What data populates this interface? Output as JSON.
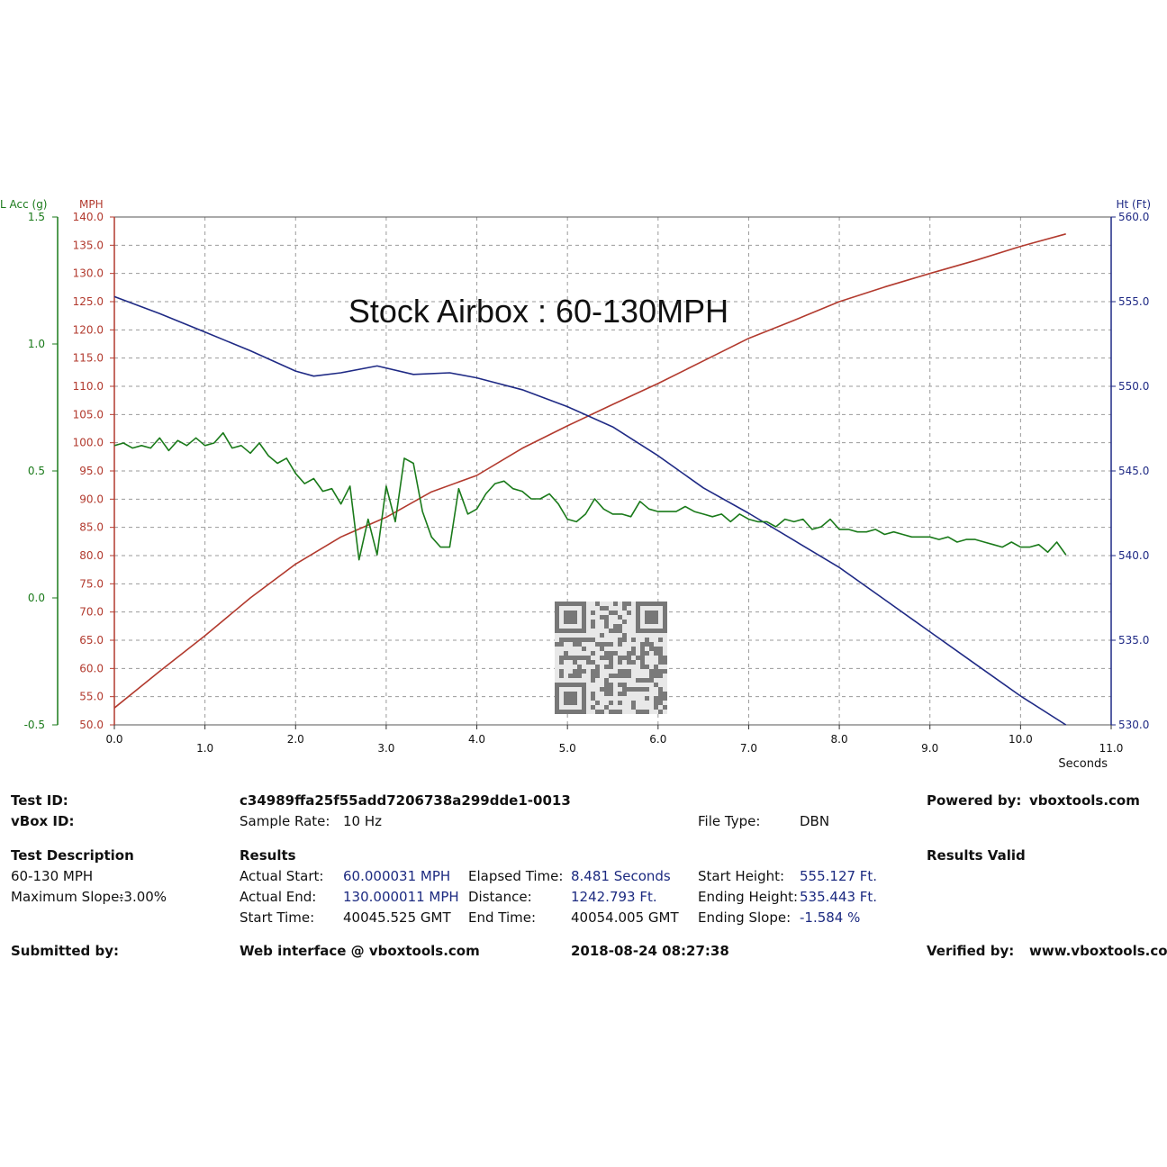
{
  "colors": {
    "speed": "#b23a2e",
    "height": "#1f2a85",
    "lat_acc": "#1a7a1a",
    "grid": "#9a9a9a"
  },
  "chart_data": {
    "type": "line",
    "title": "Stock Airbox : 60-130MPH",
    "xlabel": "Seconds",
    "xlim": [
      0,
      11
    ],
    "x_ticks": [
      "0.0",
      "1.0",
      "2.0",
      "3.0",
      "4.0",
      "5.0",
      "6.0",
      "7.0",
      "8.0",
      "9.0",
      "10.0",
      "11.0"
    ],
    "axes": {
      "lat_acc": {
        "label": "L Acc (g)",
        "range": [
          -0.5,
          1.5
        ],
        "ticks": [
          "1.5",
          "1.0",
          "0.5",
          "0.0",
          "-0.5"
        ]
      },
      "speed": {
        "label": "MPH",
        "range": [
          50,
          140
        ],
        "ticks": [
          "140.0",
          "135.0",
          "130.0",
          "125.0",
          "120.0",
          "115.0",
          "110.0",
          "105.0",
          "100.0",
          "95.0",
          "90.0",
          "85.0",
          "80.0",
          "75.0",
          "70.0",
          "65.0",
          "60.0",
          "55.0",
          "50.0"
        ]
      },
      "height": {
        "label": "Ht (Ft)",
        "range": [
          530,
          560
        ],
        "ticks": [
          "560.0",
          "555.0",
          "550.0",
          "545.0",
          "540.0",
          "535.0",
          "530.0"
        ]
      }
    },
    "grid": true,
    "series": [
      {
        "name": "MPH",
        "axis": "speed",
        "x": [
          0,
          0.5,
          1.0,
          1.5,
          2.0,
          2.5,
          3.0,
          3.5,
          4.0,
          4.5,
          5.0,
          5.5,
          6.0,
          6.5,
          7.0,
          7.5,
          8.0,
          8.5,
          9.0,
          9.5,
          10.0,
          10.5
        ],
        "values": [
          53.0,
          59.5,
          65.8,
          72.5,
          78.5,
          83.3,
          86.8,
          91.3,
          94.2,
          99.0,
          103.0,
          106.8,
          110.5,
          114.5,
          118.5,
          121.7,
          125.0,
          127.6,
          130.0,
          132.3,
          134.8,
          137.0
        ]
      },
      {
        "name": "Ht (Ft)",
        "axis": "height",
        "x": [
          0,
          0.5,
          1.0,
          1.5,
          2.0,
          2.2,
          2.5,
          2.9,
          3.3,
          3.7,
          4.0,
          4.5,
          5.0,
          5.5,
          6.0,
          6.5,
          7.0,
          7.5,
          8.0,
          8.5,
          9.0,
          9.5,
          10.0,
          10.5
        ],
        "values": [
          555.3,
          554.3,
          553.2,
          552.1,
          550.9,
          550.6,
          550.8,
          551.2,
          550.7,
          550.8,
          550.5,
          549.8,
          548.8,
          547.6,
          545.9,
          544.0,
          542.5,
          540.9,
          539.3,
          537.4,
          535.5,
          533.6,
          531.7,
          530.0
        ]
      },
      {
        "name": "L Acc (g)",
        "axis": "lat_acc",
        "x": [
          0,
          0.1,
          0.2,
          0.3,
          0.4,
          0.5,
          0.6,
          0.7,
          0.8,
          0.9,
          1.0,
          1.1,
          1.2,
          1.3,
          1.4,
          1.5,
          1.6,
          1.7,
          1.8,
          1.9,
          2.0,
          2.1,
          2.2,
          2.3,
          2.4,
          2.5,
          2.6,
          2.7,
          2.8,
          2.9,
          3.0,
          3.1,
          3.2,
          3.3,
          3.4,
          3.5,
          3.6,
          3.7,
          3.8,
          3.9,
          4.0,
          4.1,
          4.2,
          4.3,
          4.4,
          4.5,
          4.6,
          4.7,
          4.8,
          4.9,
          5.0,
          5.1,
          5.2,
          5.3,
          5.4,
          5.5,
          5.6,
          5.7,
          5.8,
          5.9,
          6.0,
          6.1,
          6.2,
          6.3,
          6.4,
          6.5,
          6.6,
          6.7,
          6.8,
          6.9,
          7.0,
          7.1,
          7.2,
          7.3,
          7.4,
          7.5,
          7.6,
          7.7,
          7.8,
          7.9,
          8.0,
          8.1,
          8.2,
          8.3,
          8.4,
          8.5,
          8.6,
          8.7,
          8.8,
          8.9,
          9.0,
          9.1,
          9.2,
          9.3,
          9.4,
          9.5,
          9.6,
          9.7,
          9.8,
          9.9,
          10.0,
          10.1,
          10.2,
          10.3,
          10.4,
          10.5
        ],
        "values": [
          0.6,
          0.61,
          0.59,
          0.6,
          0.59,
          0.63,
          0.58,
          0.62,
          0.6,
          0.63,
          0.6,
          0.61,
          0.65,
          0.59,
          0.6,
          0.57,
          0.61,
          0.56,
          0.53,
          0.55,
          0.49,
          0.45,
          0.47,
          0.42,
          0.43,
          0.37,
          0.44,
          0.15,
          0.31,
          0.17,
          0.44,
          0.3,
          0.55,
          0.53,
          0.34,
          0.24,
          0.2,
          0.2,
          0.43,
          0.33,
          0.35,
          0.41,
          0.45,
          0.46,
          0.43,
          0.42,
          0.39,
          0.39,
          0.41,
          0.37,
          0.31,
          0.3,
          0.33,
          0.39,
          0.35,
          0.33,
          0.33,
          0.32,
          0.38,
          0.35,
          0.34,
          0.34,
          0.34,
          0.36,
          0.34,
          0.33,
          0.32,
          0.33,
          0.3,
          0.33,
          0.31,
          0.3,
          0.3,
          0.28,
          0.31,
          0.3,
          0.31,
          0.27,
          0.28,
          0.31,
          0.27,
          0.27,
          0.26,
          0.26,
          0.27,
          0.25,
          0.26,
          0.25,
          0.24,
          0.24,
          0.24,
          0.23,
          0.24,
          0.22,
          0.23,
          0.23,
          0.22,
          0.21,
          0.2,
          0.22,
          0.2,
          0.2,
          0.21,
          0.18,
          0.22,
          0.17
        ]
      }
    ]
  },
  "report": {
    "test_id_label": "Test ID:",
    "test_id_value": "c34989ffa25f55add7206738a299dde1-0013",
    "vbox_id_label": "vBox ID:",
    "sample_rate_label": "Sample Rate:",
    "sample_rate_value": "10 Hz",
    "file_type_label": "File Type:",
    "file_type_value": "DBN",
    "powered_by_label": "Powered by:",
    "powered_by_value": "vboxtools.com",
    "test_description_label": "Test Description",
    "test_description_value": "60-130 MPH",
    "max_slope_label": "Maximum Slope:",
    "max_slope_value": "-3.00%",
    "results_label": "Results",
    "results_valid": "Results Valid",
    "actual_start_label": "Actual Start:",
    "actual_start_value": "60.000031 MPH",
    "actual_end_label": "Actual End:",
    "actual_end_value": "130.000011 MPH",
    "start_time_label": "Start Time:",
    "start_time_value": "40045.525 GMT",
    "elapsed_label": "Elapsed Time:",
    "elapsed_value": "8.481 Seconds",
    "distance_label": "Distance:",
    "distance_value": "1242.793 Ft.",
    "end_time_label": "End Time:",
    "end_time_value": "40054.005 GMT",
    "start_height_label": "Start Height:",
    "start_height_value": "555.127 Ft.",
    "ending_height_label": "Ending Height:",
    "ending_height_value": "535.443 Ft.",
    "ending_slope_label": "Ending Slope:",
    "ending_slope_value": "-1.584 %",
    "submitted_by_label": "Submitted by:",
    "web_interface": "Web interface @ vboxtools.com",
    "timestamp": "2018-08-24 08:27:38",
    "verified_by_label": "Verified by:",
    "verified_by_value": "www.vboxtools.com"
  }
}
